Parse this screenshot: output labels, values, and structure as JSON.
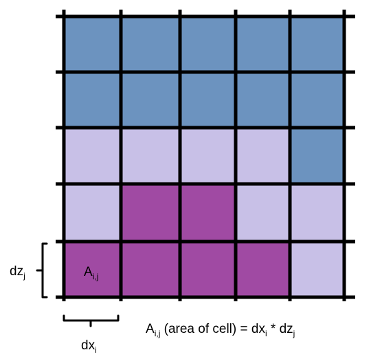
{
  "colors": {
    "blue": "#6c93bf",
    "lavender": "#c8c0e7",
    "purple": "#a04aa3",
    "line": "#000000"
  },
  "grid": {
    "rows": [
      [
        "blue",
        "blue",
        "blue",
        "blue",
        "blue"
      ],
      [
        "blue",
        "blue",
        "blue",
        "blue",
        "blue"
      ],
      [
        "lavender",
        "lavender",
        "lavender",
        "lavender",
        "blue"
      ],
      [
        "lavender",
        "purple",
        "purple",
        "lavender",
        "lavender"
      ],
      [
        "purple",
        "purple",
        "purple",
        "purple",
        "lavender"
      ]
    ]
  },
  "labels": {
    "cell": {
      "base": "A",
      "sub": "i,j"
    },
    "dz": {
      "base": "dz",
      "sub": "j"
    },
    "dx": {
      "base": "dx",
      "sub": "i"
    },
    "formula": {
      "a_base": "A",
      "a_sub": "i,j",
      "middle": " (area of cell) = ",
      "dx_base": "dx",
      "dx_sub": "i",
      "times": " * ",
      "dz_base": "dz",
      "dz_sub": "j"
    }
  }
}
